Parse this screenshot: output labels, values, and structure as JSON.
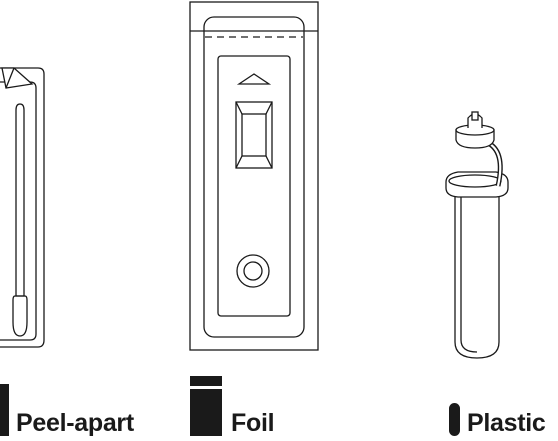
{
  "labels": {
    "peel_apart": "Peel-apart",
    "foil": "Foil",
    "plastic": "Plastic"
  },
  "colors": {
    "ink": "#1a1a1a",
    "background": "#ffffff"
  },
  "icons": {
    "peel_apart_marker": "peel-apart-pouch-icon",
    "foil_marker": "foil-pouch-icon",
    "plastic_marker": "plastic-vial-icon"
  }
}
